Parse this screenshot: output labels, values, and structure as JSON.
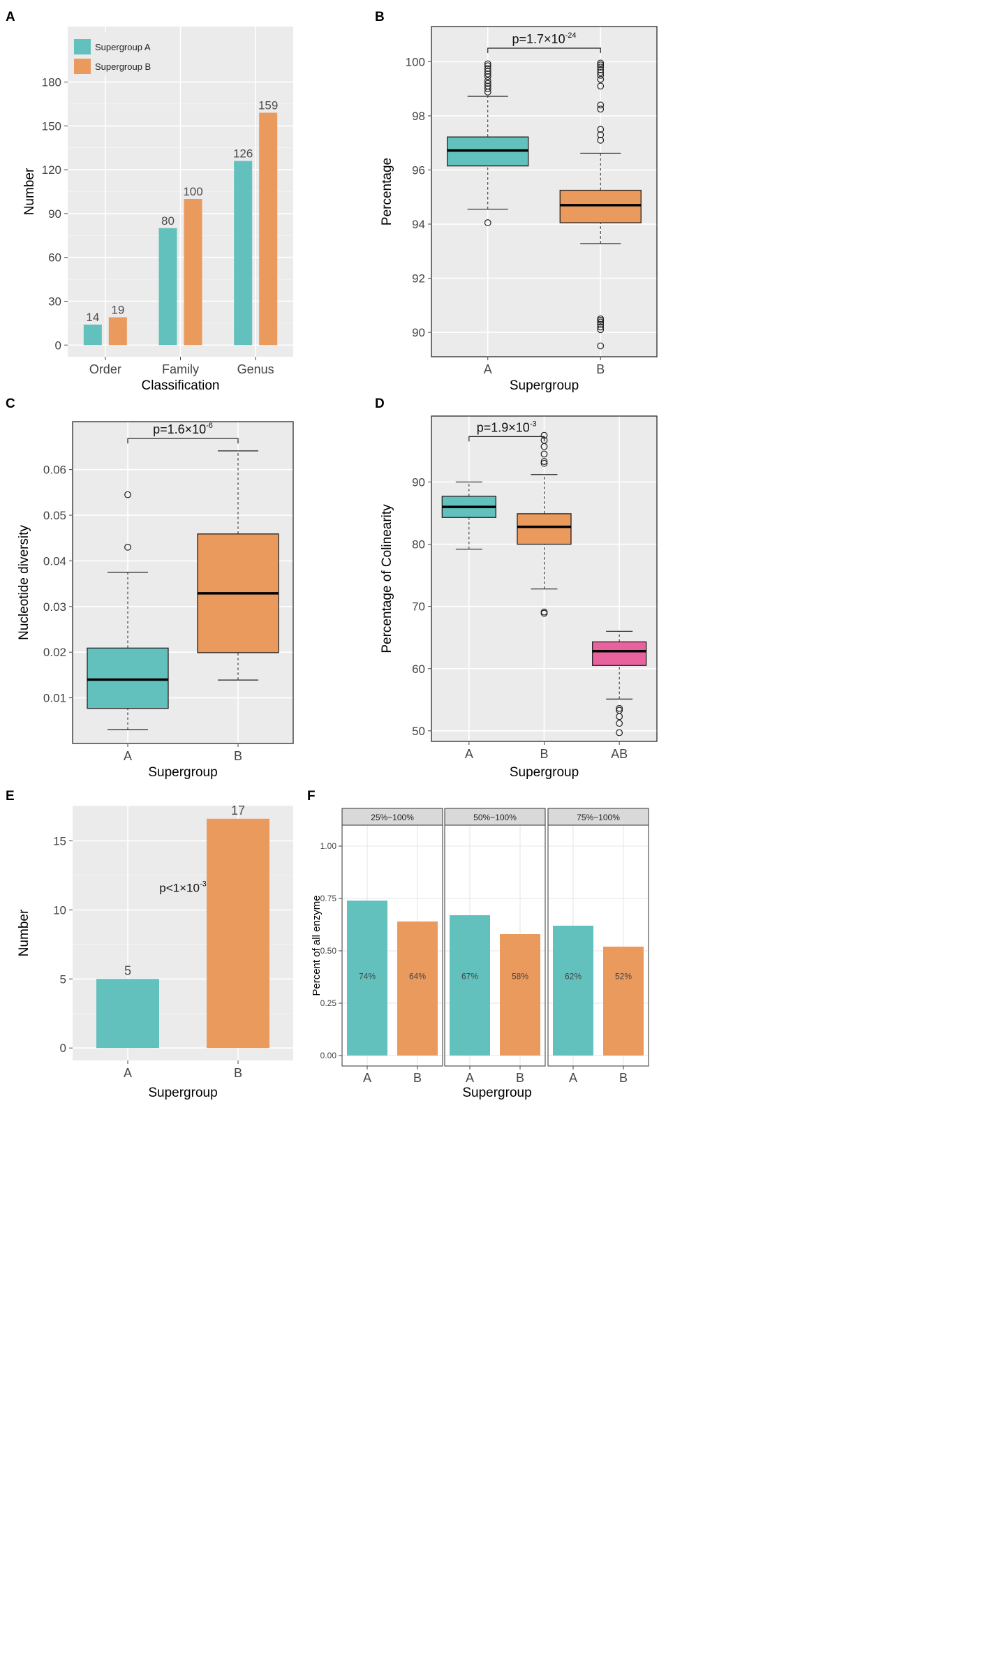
{
  "colors": {
    "teal": "#62C1BC",
    "orange": "#EB9A5E",
    "pink": "#E8629E",
    "panel_bg": "#EBEBEB",
    "grid": "#FFFFFF",
    "strip_bg": "#D9D9D9",
    "text": "#444444",
    "label_text": "#4D4D4D"
  },
  "chart_data": [
    {
      "panel": "A",
      "type": "bar",
      "xlabel": "Classification",
      "ylabel": "Number",
      "categories": [
        "Order",
        "Family",
        "Genus"
      ],
      "series": [
        {
          "name": "Supergroup A",
          "color": "teal",
          "values": [
            14,
            80,
            126
          ]
        },
        {
          "name": "Supergroup B",
          "color": "orange",
          "values": [
            19,
            100,
            159
          ]
        }
      ],
      "data_labels": [
        [
          "14",
          "80",
          "126"
        ],
        [
          "19",
          "100",
          "159"
        ]
      ],
      "yticks": [
        0,
        30,
        60,
        90,
        120,
        150,
        180
      ],
      "ytick_labels": [
        "0",
        "30",
        "60",
        "90",
        "120",
        "150",
        "180"
      ],
      "ylim": [
        -8,
        218
      ],
      "legend_position": "top-left",
      "grid": true
    },
    {
      "panel": "B",
      "type": "box",
      "xlabel": "Supergroup",
      "ylabel": "Percentage",
      "categories": [
        "A",
        "B"
      ],
      "boxes": [
        {
          "color": "teal",
          "whisker_low": 94.55,
          "q1": 96.15,
          "median": 96.72,
          "q3": 97.22,
          "whisker_high": 98.72,
          "outliers": [
            94.05,
            98.88,
            99.0,
            99.1,
            99.2,
            99.3,
            99.45,
            99.55,
            99.65,
            99.75,
            99.85,
            99.92
          ]
        },
        {
          "color": "orange",
          "whisker_low": 93.28,
          "q1": 94.05,
          "median": 94.7,
          "q3": 95.25,
          "whisker_high": 96.62,
          "outliers": [
            89.5,
            90.1,
            90.2,
            90.3,
            90.38,
            90.45,
            90.5,
            97.1,
            97.3,
            97.5,
            98.25,
            98.4,
            99.1,
            99.35,
            99.5,
            99.6,
            99.7,
            99.8,
            99.88,
            99.95
          ]
        }
      ],
      "yticks": [
        90,
        92,
        94,
        96,
        98,
        100
      ],
      "ytick_labels": [
        "90",
        "92",
        "94",
        "96",
        "98",
        "100"
      ],
      "ylim": [
        89.1,
        101.3
      ],
      "significance": {
        "between": [
          0,
          1
        ],
        "y": 100.5,
        "base": "p=1.7×10",
        "exp": "-24"
      },
      "grid": true
    },
    {
      "panel": "C",
      "type": "box",
      "xlabel": "Supergroup",
      "ylabel": "Nucleotide diversity",
      "categories": [
        "A",
        "B"
      ],
      "boxes": [
        {
          "color": "teal",
          "whisker_low": 0.003,
          "q1": 0.0077,
          "median": 0.014,
          "q3": 0.0209,
          "whisker_high": 0.0375,
          "outliers": [
            0.043,
            0.0545
          ]
        },
        {
          "color": "orange",
          "whisker_low": 0.0139,
          "q1": 0.0199,
          "median": 0.0329,
          "q3": 0.0459,
          "whisker_high": 0.0641,
          "outliers": []
        }
      ],
      "yticks": [
        0.01,
        0.02,
        0.03,
        0.04,
        0.05,
        0.06
      ],
      "ytick_labels": [
        "0.01",
        "0.02",
        "0.03",
        "0.04",
        "0.05",
        "0.06"
      ],
      "ylim": [
        0.0,
        0.0705
      ],
      "significance": {
        "between": [
          0,
          1
        ],
        "y": 0.0668,
        "base": "p=1.6×10",
        "exp": "-6"
      },
      "grid": true
    },
    {
      "panel": "D",
      "type": "box",
      "xlabel": "Supergroup",
      "ylabel": "Percentage of Colinearity",
      "categories": [
        "A",
        "B",
        "AB"
      ],
      "boxes": [
        {
          "color": "teal",
          "whisker_low": 79.2,
          "q1": 84.3,
          "median": 86.0,
          "q3": 87.7,
          "whisker_high": 90.0,
          "outliers": []
        },
        {
          "color": "orange",
          "whisker_low": 72.8,
          "q1": 80.0,
          "median": 82.8,
          "q3": 84.9,
          "whisker_high": 91.2,
          "outliers": [
            68.9,
            69.1,
            93.0,
            93.3,
            94.5,
            95.7,
            96.7,
            97.5
          ]
        },
        {
          "color": "pink",
          "whisker_low": 55.1,
          "q1": 60.5,
          "median": 62.8,
          "q3": 64.3,
          "whisker_high": 66.0,
          "outliers": [
            49.7,
            51.2,
            52.3,
            53.3,
            53.6
          ]
        }
      ],
      "yticks": [
        50,
        60,
        70,
        80,
        90
      ],
      "ytick_labels": [
        "50",
        "60",
        "70",
        "80",
        "90"
      ],
      "ylim": [
        48.3,
        100.6
      ],
      "significance": {
        "between": [
          0,
          1
        ],
        "y": 97.3,
        "base": "p=1.9×10",
        "exp": "-3"
      },
      "grid": true
    },
    {
      "panel": "E",
      "type": "bar",
      "xlabel": "Supergroup",
      "ylabel": "Number",
      "categories": [
        "A",
        "B"
      ],
      "values": [
        5,
        16.6
      ],
      "colors": [
        "teal",
        "orange"
      ],
      "data_labels": [
        "5",
        "17"
      ],
      "yticks": [
        0,
        5,
        10,
        15
      ],
      "ytick_labels": [
        "0",
        "5",
        "10",
        "15"
      ],
      "ylim": [
        -0.9,
        17.55
      ],
      "annotation": {
        "base": "p<1×10",
        "exp": "-3",
        "x": 0.5,
        "y": 11.3
      },
      "grid": true
    },
    {
      "panel": "F",
      "type": "bar",
      "faceted": true,
      "xlabel": "Supergroup",
      "ylabel": "Percent of all enzyme",
      "yticks": [
        0.0,
        0.25,
        0.5,
        0.75,
        1.0
      ],
      "ytick_labels": [
        "0.00",
        "0.25",
        "0.50",
        "0.75",
        "1.00"
      ],
      "ylim": [
        -0.05,
        1.1
      ],
      "facets": [
        {
          "strip": "25%~100%",
          "categories": [
            "A",
            "B"
          ],
          "values": [
            0.74,
            0.64
          ],
          "labels": [
            "74%",
            "64%"
          ],
          "colors": [
            "teal",
            "orange"
          ]
        },
        {
          "strip": "50%~100%",
          "categories": [
            "A",
            "B"
          ],
          "values": [
            0.67,
            0.58
          ],
          "labels": [
            "67%",
            "58%"
          ],
          "colors": [
            "teal",
            "orange"
          ]
        },
        {
          "strip": "75%~100%",
          "categories": [
            "A",
            "B"
          ],
          "values": [
            0.62,
            0.52
          ],
          "labels": [
            "62%",
            "52%"
          ],
          "colors": [
            "teal",
            "orange"
          ]
        }
      ],
      "grid": true
    }
  ]
}
